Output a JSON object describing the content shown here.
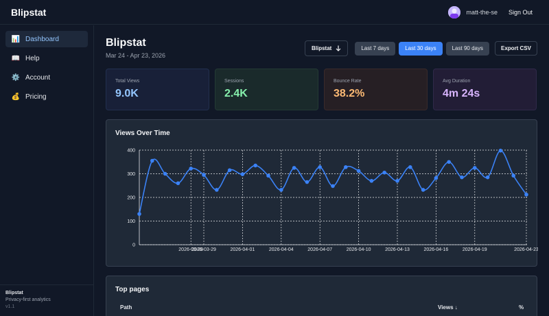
{
  "app": {
    "brand": "Blipstat"
  },
  "user": {
    "name": "matt-the-se",
    "signout_label": "Sign Out"
  },
  "sidebar": {
    "items": [
      {
        "label": "Dashboard",
        "icon": "chart-icon",
        "glyph": "📊",
        "active": true
      },
      {
        "label": "Help",
        "icon": "book-icon",
        "glyph": "📖",
        "active": false
      },
      {
        "label": "Account",
        "icon": "gear-icon",
        "glyph": "⚙️",
        "active": false
      },
      {
        "label": "Pricing",
        "icon": "money-bag-icon",
        "glyph": "💰",
        "active": false
      }
    ],
    "footer": {
      "title": "Blipstat",
      "subtitle": "Privacy-first analytics",
      "version": "v1.1"
    }
  },
  "header": {
    "title": "Blipstat",
    "date_range": "Mar 24 - Apr 23, 2026",
    "site_select": "Blipstat",
    "range_buttons": [
      {
        "label": "Last 7 days",
        "selected": false
      },
      {
        "label": "Last 30 days",
        "selected": true
      },
      {
        "label": "Last 90 days",
        "selected": false
      }
    ],
    "export_label": "Export CSV"
  },
  "stats": [
    {
      "label": "Total Views",
      "value": "9.0K",
      "color": "#93c5fd"
    },
    {
      "label": "Sessions",
      "value": "2.4K",
      "color": "#86efac"
    },
    {
      "label": "Bounce Rate",
      "value": "38.2%",
      "color": "#fdba74"
    },
    {
      "label": "Avg Duration",
      "value": "4m 24s",
      "color": "#d8b4fe"
    }
  ],
  "chart_data": {
    "type": "line",
    "title": "Views Over Time",
    "x": [
      "2026-03-24",
      "2026-03-25",
      "2026-03-26",
      "2026-03-27",
      "2026-03-28",
      "2026-03-29",
      "2026-03-30",
      "2026-03-31",
      "2026-04-01",
      "2026-04-02",
      "2026-04-03",
      "2026-04-04",
      "2026-04-05",
      "2026-04-06",
      "2026-04-07",
      "2026-04-08",
      "2026-04-09",
      "2026-04-10",
      "2026-04-11",
      "2026-04-12",
      "2026-04-13",
      "2026-04-14",
      "2026-04-15",
      "2026-04-16",
      "2026-04-17",
      "2026-04-18",
      "2026-04-19",
      "2026-04-20",
      "2026-04-21",
      "2026-04-22",
      "2026-04-23"
    ],
    "values": [
      130,
      355,
      300,
      260,
      322,
      295,
      232,
      315,
      298,
      335,
      292,
      232,
      325,
      265,
      328,
      248,
      328,
      312,
      270,
      305,
      270,
      328,
      232,
      282,
      350,
      285,
      325,
      285,
      398,
      292,
      212
    ],
    "x_tick_labels": [
      "2026-03-28",
      "2026-03-29",
      "2026-04-01",
      "2026-04-04",
      "2026-04-07",
      "2026-04-10",
      "2026-04-13",
      "2026-04-16",
      "2026-04-19",
      "2026-04-23"
    ],
    "ylim": [
      0,
      400
    ],
    "y_ticks": [
      0,
      100,
      200,
      300,
      400
    ],
    "grid": true,
    "color": "#3b82f6"
  },
  "top_pages": {
    "title": "Top pages",
    "columns": [
      "Path",
      "Views ↓",
      "%"
    ]
  }
}
